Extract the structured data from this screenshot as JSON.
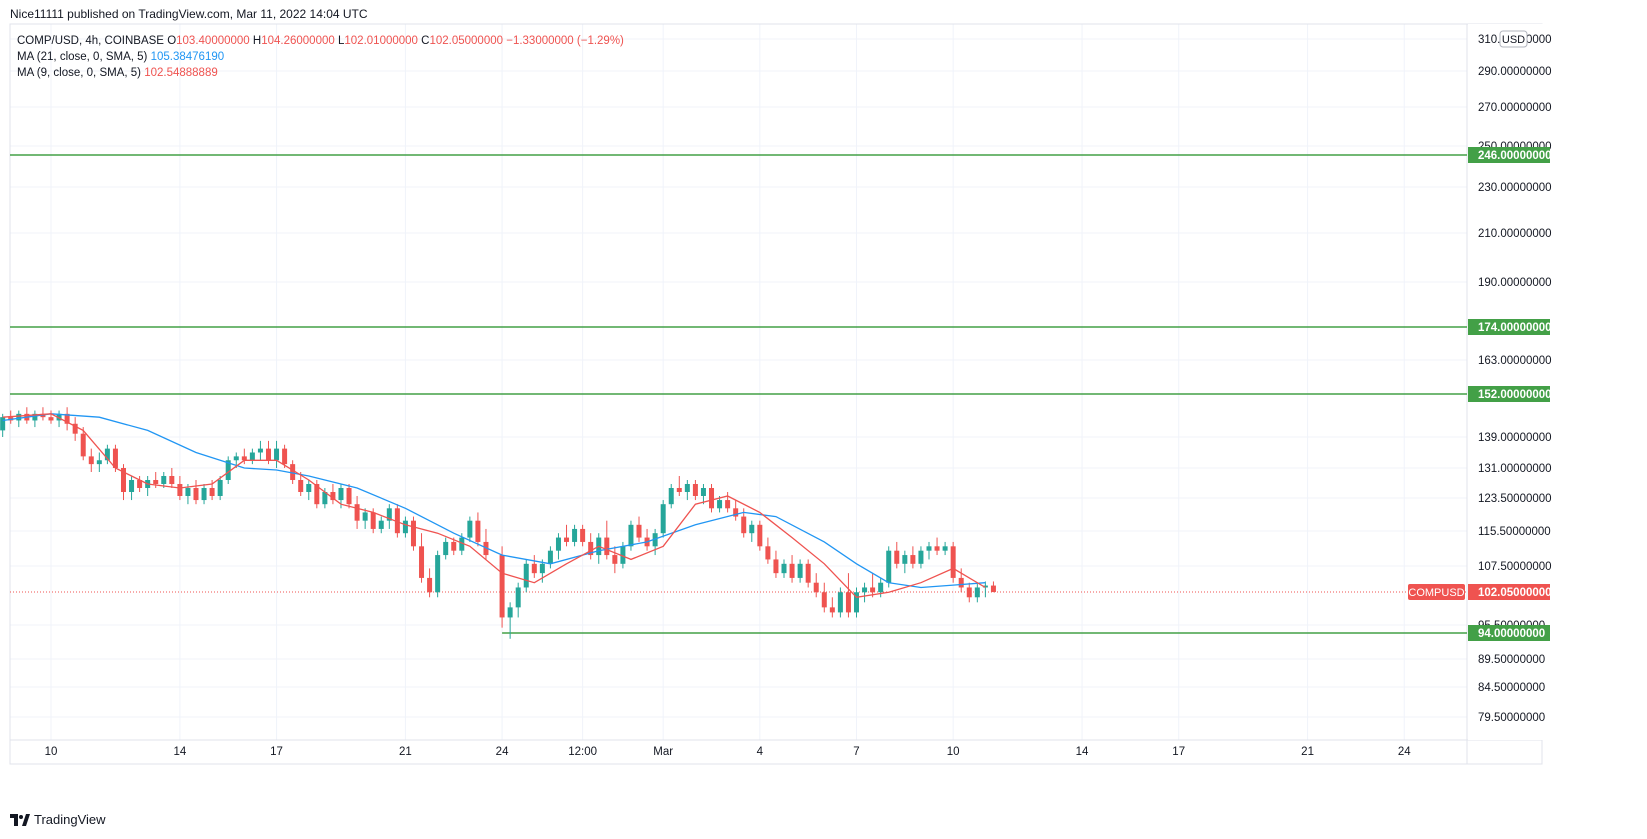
{
  "header": {
    "publish_line": "Nice11111 published on TradingView.com, Mar 11, 2022 14:04 UTC"
  },
  "legend": {
    "symbol_line": "COMP/USD, 4h, COINBASE",
    "open_label": "O",
    "open_value": "103.40000000",
    "high_label": "H",
    "high_value": "104.26000000",
    "low_label": "L",
    "low_value": "102.01000000",
    "close_label": "C",
    "close_value": "102.05000000",
    "change": "−1.33000000 (−1.29%)",
    "ma21_label": "MA (21, close, 0, SMA, 5)",
    "ma21_value": "105.38476190",
    "ma9_label": "MA (9, close, 0, SMA, 5)",
    "ma9_value": "102.54888889"
  },
  "footer": {
    "brand": "TradingView"
  },
  "colors": {
    "up": "#26a69a",
    "down": "#ef5350",
    "ma21": "#2196f3",
    "ma9": "#ef5350",
    "level": "#43a047",
    "grid": "#f0f3fa",
    "axis_text": "#131722"
  },
  "chart_data": {
    "type": "candlestick",
    "symbol": "COMP/USD",
    "interval": "4h",
    "exchange": "COINBASE",
    "currency_badge": "USD",
    "price_scale_ticks": [
      "310.00000000",
      "290.00000000",
      "270.00000000",
      "250.00000000",
      "230.00000000",
      "210.00000000",
      "190.00000000",
      "163.00000000",
      "139.00000000",
      "131.00000000",
      "123.50000000",
      "115.50000000",
      "107.50000000",
      "95.50000000",
      "89.50000000",
      "84.50000000",
      "79.50000000"
    ],
    "price_tick_values": [
      310,
      290,
      270,
      250,
      230,
      210,
      190,
      163,
      139,
      131,
      123.5,
      115.5,
      107.5,
      95.5,
      89.5,
      84.5,
      79.5
    ],
    "time_axis_labels": [
      "10",
      "14",
      "17",
      "21",
      "24",
      "12:00",
      "Mar",
      "4",
      "7",
      "10",
      "14",
      "17",
      "21",
      "24"
    ],
    "time_axis_days": [
      0,
      4,
      7,
      11,
      14,
      16.5,
      19,
      22,
      25,
      28,
      32,
      35,
      39,
      42
    ],
    "horizontal_levels": [
      {
        "value": 246,
        "label": "246.00000000",
        "start_day": -1.5
      },
      {
        "value": 174,
        "label": "174.00000000",
        "start_day": -1.5
      },
      {
        "value": 152,
        "label": "152.00000000",
        "start_day": -1.5
      },
      {
        "value": 94,
        "label": "94.00000000",
        "start_day": 14.0
      }
    ],
    "last_price": {
      "symbol": "COMPUSD",
      "value": 102.05,
      "label": "102.05000000"
    },
    "ma21_path": [
      [
        -1.5,
        144
      ],
      [
        0,
        146
      ],
      [
        1.5,
        145
      ],
      [
        3,
        141
      ],
      [
        4.5,
        135
      ],
      [
        6,
        131
      ],
      [
        7,
        130.5
      ],
      [
        8,
        129
      ],
      [
        9.5,
        126
      ],
      [
        11,
        121
      ],
      [
        12.5,
        115
      ],
      [
        14,
        110
      ],
      [
        15.5,
        108
      ],
      [
        17,
        111
      ],
      [
        18.5,
        113
      ],
      [
        20,
        117
      ],
      [
        21.5,
        120
      ],
      [
        22.5,
        119
      ],
      [
        24,
        113
      ],
      [
        25,
        108
      ],
      [
        26,
        104
      ],
      [
        27,
        103
      ],
      [
        28,
        103.5
      ],
      [
        29,
        104
      ]
    ],
    "ma9_path": [
      [
        -1.5,
        145
      ],
      [
        0,
        146
      ],
      [
        1,
        141
      ],
      [
        2,
        131
      ],
      [
        3,
        127
      ],
      [
        4,
        126
      ],
      [
        5,
        127
      ],
      [
        6,
        133
      ],
      [
        7,
        133
      ],
      [
        8,
        128
      ],
      [
        9,
        122
      ],
      [
        10,
        120
      ],
      [
        11,
        117
      ],
      [
        12,
        115
      ],
      [
        13,
        112
      ],
      [
        14,
        106
      ],
      [
        15,
        104
      ],
      [
        16,
        108
      ],
      [
        17,
        112
      ],
      [
        18,
        109
      ],
      [
        19,
        112
      ],
      [
        20,
        122
      ],
      [
        21,
        124
      ],
      [
        22,
        120
      ],
      [
        23,
        114
      ],
      [
        24,
        108
      ],
      [
        25,
        101
      ],
      [
        26,
        102
      ],
      [
        27,
        104
      ],
      [
        28,
        107
      ],
      [
        29,
        103
      ]
    ],
    "candles": [
      {
        "d": -1.5,
        "o": 141,
        "h": 146,
        "l": 139,
        "c": 145
      },
      {
        "d": -1.25,
        "o": 145,
        "h": 147,
        "l": 143,
        "c": 144
      },
      {
        "d": -1,
        "o": 144,
        "h": 147,
        "l": 142,
        "c": 146
      },
      {
        "d": -0.75,
        "o": 146,
        "h": 148,
        "l": 143,
        "c": 144
      },
      {
        "d": -0.5,
        "o": 144,
        "h": 147,
        "l": 142,
        "c": 146
      },
      {
        "d": -0.25,
        "o": 146,
        "h": 148,
        "l": 144,
        "c": 145
      },
      {
        "d": 0,
        "o": 145,
        "h": 147,
        "l": 143,
        "c": 144
      },
      {
        "d": 0.25,
        "o": 144,
        "h": 147,
        "l": 142,
        "c": 146
      },
      {
        "d": 0.5,
        "o": 146,
        "h": 148,
        "l": 141,
        "c": 143
      },
      {
        "d": 0.75,
        "o": 143,
        "h": 145,
        "l": 138,
        "c": 140
      },
      {
        "d": 1,
        "o": 140,
        "h": 142,
        "l": 133,
        "c": 134
      },
      {
        "d": 1.25,
        "o": 134,
        "h": 136,
        "l": 130,
        "c": 132
      },
      {
        "d": 1.5,
        "o": 132,
        "h": 135,
        "l": 130,
        "c": 133
      },
      {
        "d": 1.75,
        "o": 133,
        "h": 137,
        "l": 132,
        "c": 136
      },
      {
        "d": 2,
        "o": 136,
        "h": 137,
        "l": 130,
        "c": 131
      },
      {
        "d": 2.25,
        "o": 131,
        "h": 132,
        "l": 123,
        "c": 125
      },
      {
        "d": 2.5,
        "o": 125,
        "h": 129,
        "l": 123,
        "c": 128
      },
      {
        "d": 2.75,
        "o": 128,
        "h": 129,
        "l": 125,
        "c": 126
      },
      {
        "d": 3,
        "o": 126,
        "h": 129,
        "l": 124,
        "c": 128
      },
      {
        "d": 3.25,
        "o": 128,
        "h": 130,
        "l": 126,
        "c": 127
      },
      {
        "d": 3.5,
        "o": 127,
        "h": 130,
        "l": 126,
        "c": 129
      },
      {
        "d": 3.75,
        "o": 129,
        "h": 131,
        "l": 126,
        "c": 127
      },
      {
        "d": 4,
        "o": 127,
        "h": 129,
        "l": 123,
        "c": 124
      },
      {
        "d": 4.25,
        "o": 124,
        "h": 127,
        "l": 122,
        "c": 126
      },
      {
        "d": 4.5,
        "o": 126,
        "h": 128,
        "l": 122,
        "c": 123
      },
      {
        "d": 4.75,
        "o": 123,
        "h": 127,
        "l": 122,
        "c": 126
      },
      {
        "d": 5,
        "o": 126,
        "h": 128,
        "l": 123,
        "c": 124
      },
      {
        "d": 5.25,
        "o": 124,
        "h": 129,
        "l": 123,
        "c": 128
      },
      {
        "d": 5.5,
        "o": 128,
        "h": 134,
        "l": 127,
        "c": 133
      },
      {
        "d": 5.75,
        "o": 133,
        "h": 135,
        "l": 131,
        "c": 134
      },
      {
        "d": 6,
        "o": 134,
        "h": 136,
        "l": 132,
        "c": 133
      },
      {
        "d": 6.25,
        "o": 133,
        "h": 136,
        "l": 132,
        "c": 135
      },
      {
        "d": 6.5,
        "o": 135,
        "h": 138,
        "l": 133,
        "c": 136
      },
      {
        "d": 6.75,
        "o": 136,
        "h": 138,
        "l": 132,
        "c": 133
      },
      {
        "d": 7,
        "o": 133,
        "h": 138,
        "l": 131,
        "c": 136
      },
      {
        "d": 7.25,
        "o": 136,
        "h": 137,
        "l": 131,
        "c": 132
      },
      {
        "d": 7.5,
        "o": 132,
        "h": 133,
        "l": 127,
        "c": 128
      },
      {
        "d": 7.75,
        "o": 128,
        "h": 130,
        "l": 124,
        "c": 125
      },
      {
        "d": 8,
        "o": 125,
        "h": 128,
        "l": 123,
        "c": 127
      },
      {
        "d": 8.25,
        "o": 127,
        "h": 128,
        "l": 121,
        "c": 122
      },
      {
        "d": 8.5,
        "o": 122,
        "h": 126,
        "l": 121,
        "c": 125
      },
      {
        "d": 8.75,
        "o": 125,
        "h": 127,
        "l": 122,
        "c": 123
      },
      {
        "d": 9,
        "o": 123,
        "h": 127,
        "l": 121,
        "c": 126
      },
      {
        "d": 9.25,
        "o": 126,
        "h": 127,
        "l": 121,
        "c": 122
      },
      {
        "d": 9.5,
        "o": 122,
        "h": 124,
        "l": 116,
        "c": 118
      },
      {
        "d": 9.75,
        "o": 118,
        "h": 121,
        "l": 116,
        "c": 120
      },
      {
        "d": 10,
        "o": 120,
        "h": 121,
        "l": 115,
        "c": 116
      },
      {
        "d": 10.25,
        "o": 116,
        "h": 119,
        "l": 115,
        "c": 118
      },
      {
        "d": 10.5,
        "o": 118,
        "h": 122,
        "l": 116,
        "c": 121
      },
      {
        "d": 10.75,
        "o": 121,
        "h": 122,
        "l": 114,
        "c": 115
      },
      {
        "d": 11,
        "o": 115,
        "h": 119,
        "l": 114,
        "c": 118
      },
      {
        "d": 11.25,
        "o": 118,
        "h": 119,
        "l": 111,
        "c": 112
      },
      {
        "d": 11.5,
        "o": 112,
        "h": 115,
        "l": 104,
        "c": 105
      },
      {
        "d": 11.75,
        "o": 105,
        "h": 107,
        "l": 101,
        "c": 102
      },
      {
        "d": 12,
        "o": 102,
        "h": 111,
        "l": 101,
        "c": 110
      },
      {
        "d": 12.25,
        "o": 110,
        "h": 114,
        "l": 109,
        "c": 113
      },
      {
        "d": 12.5,
        "o": 113,
        "h": 114,
        "l": 110,
        "c": 111
      },
      {
        "d": 12.75,
        "o": 111,
        "h": 115,
        "l": 110,
        "c": 114
      },
      {
        "d": 13,
        "o": 114,
        "h": 119,
        "l": 113,
        "c": 118
      },
      {
        "d": 13.25,
        "o": 118,
        "h": 120,
        "l": 112,
        "c": 113
      },
      {
        "d": 13.5,
        "o": 113,
        "h": 116,
        "l": 109,
        "c": 110
      },
      {
        "d": 14,
        "o": 110,
        "h": 112,
        "l": 95,
        "c": 97
      },
      {
        "d": 14.25,
        "o": 97,
        "h": 100,
        "l": 93,
        "c": 99
      },
      {
        "d": 14.5,
        "o": 99,
        "h": 104,
        "l": 97,
        "c": 103
      },
      {
        "d": 14.75,
        "o": 103,
        "h": 109,
        "l": 102,
        "c": 108
      },
      {
        "d": 15,
        "o": 108,
        "h": 110,
        "l": 105,
        "c": 106
      },
      {
        "d": 15.25,
        "o": 106,
        "h": 109,
        "l": 104,
        "c": 108
      },
      {
        "d": 15.5,
        "o": 108,
        "h": 112,
        "l": 107,
        "c": 111
      },
      {
        "d": 15.75,
        "o": 111,
        "h": 115,
        "l": 109,
        "c": 114
      },
      {
        "d": 16,
        "o": 114,
        "h": 117,
        "l": 112,
        "c": 113
      },
      {
        "d": 16.25,
        "o": 113,
        "h": 117,
        "l": 112,
        "c": 116
      },
      {
        "d": 16.5,
        "o": 116,
        "h": 117,
        "l": 112,
        "c": 113
      },
      {
        "d": 16.75,
        "o": 113,
        "h": 115,
        "l": 109,
        "c": 110
      },
      {
        "d": 17,
        "o": 110,
        "h": 115,
        "l": 108,
        "c": 114
      },
      {
        "d": 17.25,
        "o": 114,
        "h": 118,
        "l": 109,
        "c": 110
      },
      {
        "d": 17.5,
        "o": 110,
        "h": 112,
        "l": 106,
        "c": 108
      },
      {
        "d": 17.75,
        "o": 108,
        "h": 113,
        "l": 107,
        "c": 112
      },
      {
        "d": 18,
        "o": 112,
        "h": 118,
        "l": 111,
        "c": 117
      },
      {
        "d": 18.25,
        "o": 117,
        "h": 119,
        "l": 113,
        "c": 114
      },
      {
        "d": 18.5,
        "o": 114,
        "h": 116,
        "l": 111,
        "c": 112
      },
      {
        "d": 18.75,
        "o": 112,
        "h": 116,
        "l": 110,
        "c": 115
      },
      {
        "d": 19,
        "o": 115,
        "h": 123,
        "l": 114,
        "c": 122
      },
      {
        "d": 19.25,
        "o": 122,
        "h": 127,
        "l": 121,
        "c": 126
      },
      {
        "d": 19.5,
        "o": 126,
        "h": 129,
        "l": 124,
        "c": 125
      },
      {
        "d": 19.75,
        "o": 125,
        "h": 128,
        "l": 123,
        "c": 127
      },
      {
        "d": 20,
        "o": 127,
        "h": 128,
        "l": 123,
        "c": 124
      },
      {
        "d": 20.25,
        "o": 124,
        "h": 127,
        "l": 122,
        "c": 126
      },
      {
        "d": 20.5,
        "o": 126,
        "h": 127,
        "l": 120,
        "c": 121
      },
      {
        "d": 20.75,
        "o": 121,
        "h": 124,
        "l": 120,
        "c": 123
      },
      {
        "d": 21,
        "o": 123,
        "h": 125,
        "l": 120,
        "c": 121
      },
      {
        "d": 21.25,
        "o": 121,
        "h": 123,
        "l": 118,
        "c": 119
      },
      {
        "d": 21.5,
        "o": 119,
        "h": 121,
        "l": 114,
        "c": 115
      },
      {
        "d": 21.75,
        "o": 115,
        "h": 118,
        "l": 113,
        "c": 117
      },
      {
        "d": 22,
        "o": 117,
        "h": 118,
        "l": 111,
        "c": 112
      },
      {
        "d": 22.25,
        "o": 112,
        "h": 114,
        "l": 108,
        "c": 109
      },
      {
        "d": 22.5,
        "o": 109,
        "h": 111,
        "l": 105,
        "c": 106
      },
      {
        "d": 22.75,
        "o": 106,
        "h": 109,
        "l": 105,
        "c": 108
      },
      {
        "d": 23,
        "o": 108,
        "h": 110,
        "l": 104,
        "c": 105
      },
      {
        "d": 23.25,
        "o": 105,
        "h": 109,
        "l": 104,
        "c": 108
      },
      {
        "d": 23.5,
        "o": 108,
        "h": 109,
        "l": 103,
        "c": 104
      },
      {
        "d": 23.75,
        "o": 104,
        "h": 106,
        "l": 101,
        "c": 102
      },
      {
        "d": 24,
        "o": 102,
        "h": 104,
        "l": 98,
        "c": 99
      },
      {
        "d": 24.25,
        "o": 99,
        "h": 101,
        "l": 97,
        "c": 98
      },
      {
        "d": 24.5,
        "o": 98,
        "h": 103,
        "l": 97,
        "c": 102
      },
      {
        "d": 24.75,
        "o": 102,
        "h": 106,
        "l": 97,
        "c": 98
      },
      {
        "d": 25,
        "o": 98,
        "h": 103,
        "l": 97,
        "c": 102
      },
      {
        "d": 25.25,
        "o": 102,
        "h": 104,
        "l": 100,
        "c": 103
      },
      {
        "d": 25.5,
        "o": 103,
        "h": 106,
        "l": 101,
        "c": 102
      },
      {
        "d": 25.75,
        "o": 102,
        "h": 105,
        "l": 101,
        "c": 104
      },
      {
        "d": 26,
        "o": 104,
        "h": 112,
        "l": 103,
        "c": 111
      },
      {
        "d": 26.25,
        "o": 111,
        "h": 113,
        "l": 107,
        "c": 108
      },
      {
        "d": 26.5,
        "o": 108,
        "h": 111,
        "l": 106,
        "c": 110
      },
      {
        "d": 26.75,
        "o": 110,
        "h": 112,
        "l": 107,
        "c": 108
      },
      {
        "d": 27,
        "o": 108,
        "h": 112,
        "l": 107,
        "c": 111
      },
      {
        "d": 27.25,
        "o": 111,
        "h": 113,
        "l": 109,
        "c": 112
      },
      {
        "d": 27.5,
        "o": 112,
        "h": 114,
        "l": 110,
        "c": 111
      },
      {
        "d": 27.75,
        "o": 111,
        "h": 113,
        "l": 110,
        "c": 112
      },
      {
        "d": 28,
        "o": 112,
        "h": 113,
        "l": 104,
        "c": 105
      },
      {
        "d": 28.25,
        "o": 105,
        "h": 107,
        "l": 102,
        "c": 103
      },
      {
        "d": 28.5,
        "o": 103,
        "h": 104,
        "l": 100,
        "c": 101
      },
      {
        "d": 28.75,
        "o": 101,
        "h": 104,
        "l": 100,
        "c": 103
      },
      {
        "d": 29,
        "o": 103,
        "h": 104.26,
        "l": 101,
        "c": 103.4
      },
      {
        "d": 29.25,
        "o": 103.4,
        "h": 104.26,
        "l": 102.01,
        "c": 102.05
      }
    ]
  }
}
